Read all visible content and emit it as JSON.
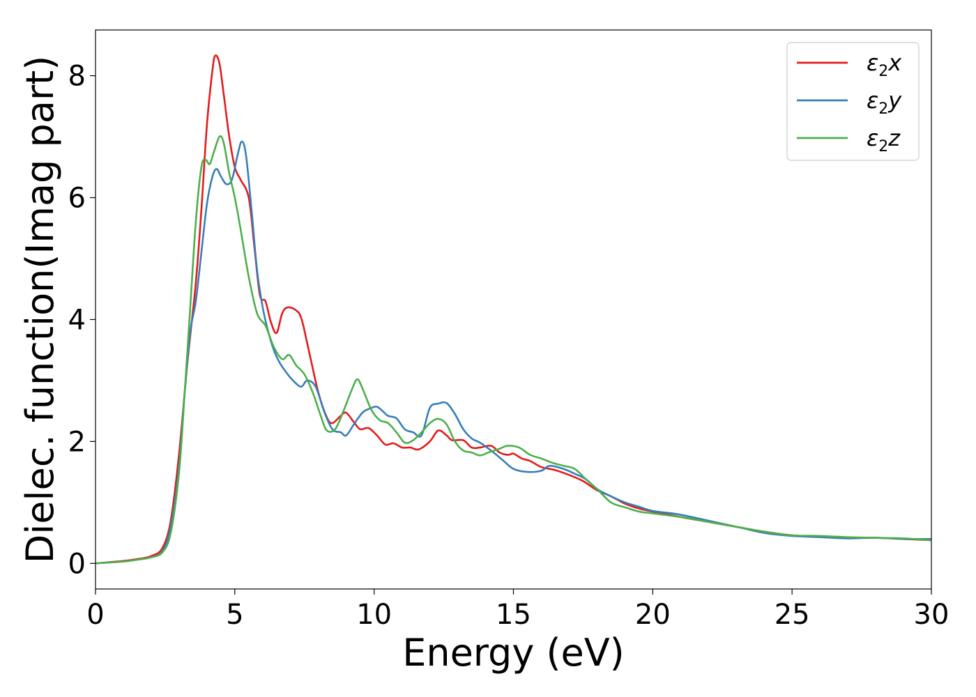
{
  "chart_data": {
    "type": "line",
    "xlabel": "Energy (eV)",
    "ylabel": "Dielec. function(Imag part)",
    "xlim": [
      0,
      30
    ],
    "ylim": [
      -0.42,
      8.75
    ],
    "xticks": [
      0,
      5,
      10,
      15,
      20,
      25,
      30
    ],
    "yticks": [
      0,
      2,
      4,
      6,
      8
    ],
    "grid": false,
    "legend_position": "top-right",
    "series": [
      {
        "name": "ε2x",
        "legend": {
          "base": "ε",
          "sub": "2",
          "suffix": "x"
        },
        "color": "#e41a1c",
        "points": [
          [
            0,
            0
          ],
          [
            1,
            0.04
          ],
          [
            1.5,
            0.07
          ],
          [
            2,
            0.12
          ],
          [
            2.4,
            0.25
          ],
          [
            2.7,
            0.7
          ],
          [
            3.0,
            1.8
          ],
          [
            3.3,
            3.3
          ],
          [
            3.6,
            4.6
          ],
          [
            3.8,
            5.8
          ],
          [
            4.0,
            7.2
          ],
          [
            4.2,
            8.1
          ],
          [
            4.3,
            8.33
          ],
          [
            4.45,
            8.2
          ],
          [
            4.6,
            7.7
          ],
          [
            4.8,
            7.0
          ],
          [
            5.0,
            6.5
          ],
          [
            5.2,
            6.3
          ],
          [
            5.5,
            6.0
          ],
          [
            5.7,
            5.2
          ],
          [
            5.9,
            4.4
          ],
          [
            6.1,
            4.3
          ],
          [
            6.3,
            3.95
          ],
          [
            6.5,
            3.78
          ],
          [
            6.7,
            4.1
          ],
          [
            6.9,
            4.2
          ],
          [
            7.2,
            4.15
          ],
          [
            7.4,
            4.0
          ],
          [
            7.7,
            3.4
          ],
          [
            8.0,
            2.8
          ],
          [
            8.3,
            2.4
          ],
          [
            8.5,
            2.3
          ],
          [
            8.8,
            2.42
          ],
          [
            9.0,
            2.47
          ],
          [
            9.3,
            2.3
          ],
          [
            9.5,
            2.2
          ],
          [
            9.8,
            2.22
          ],
          [
            10.1,
            2.1
          ],
          [
            10.4,
            1.95
          ],
          [
            10.7,
            1.97
          ],
          [
            11.0,
            1.9
          ],
          [
            11.3,
            1.9
          ],
          [
            11.6,
            1.87
          ],
          [
            12.0,
            2.0
          ],
          [
            12.3,
            2.18
          ],
          [
            12.6,
            2.1
          ],
          [
            12.8,
            2.02
          ],
          [
            13.2,
            2.02
          ],
          [
            13.5,
            1.9
          ],
          [
            13.8,
            1.9
          ],
          [
            14.2,
            1.93
          ],
          [
            14.5,
            1.82
          ],
          [
            14.8,
            1.78
          ],
          [
            15.0,
            1.8
          ],
          [
            15.3,
            1.72
          ],
          [
            15.6,
            1.68
          ],
          [
            16.0,
            1.58
          ],
          [
            16.5,
            1.53
          ],
          [
            17.0,
            1.45
          ],
          [
            17.5,
            1.35
          ],
          [
            18.0,
            1.2
          ],
          [
            18.5,
            1.1
          ],
          [
            19.0,
            0.98
          ],
          [
            19.5,
            0.9
          ],
          [
            20.0,
            0.85
          ],
          [
            21.0,
            0.76
          ],
          [
            22.0,
            0.68
          ],
          [
            23.0,
            0.6
          ],
          [
            24.0,
            0.52
          ],
          [
            25.0,
            0.46
          ],
          [
            26.0,
            0.44
          ],
          [
            27.0,
            0.42
          ],
          [
            28.0,
            0.42
          ],
          [
            29.0,
            0.4
          ],
          [
            30.0,
            0.38
          ]
        ]
      },
      {
        "name": "ε2y",
        "legend": {
          "base": "ε",
          "sub": "2",
          "suffix": "y"
        },
        "color": "#377eb8",
        "points": [
          [
            0,
            0
          ],
          [
            1,
            0.03
          ],
          [
            1.5,
            0.06
          ],
          [
            2,
            0.1
          ],
          [
            2.4,
            0.2
          ],
          [
            2.7,
            0.6
          ],
          [
            3.0,
            1.6
          ],
          [
            3.2,
            2.8
          ],
          [
            3.4,
            3.8
          ],
          [
            3.6,
            4.3
          ],
          [
            3.8,
            5.1
          ],
          [
            4.0,
            5.9
          ],
          [
            4.2,
            6.35
          ],
          [
            4.35,
            6.47
          ],
          [
            4.5,
            6.35
          ],
          [
            4.7,
            6.22
          ],
          [
            4.9,
            6.3
          ],
          [
            5.1,
            6.7
          ],
          [
            5.25,
            6.92
          ],
          [
            5.4,
            6.7
          ],
          [
            5.6,
            5.8
          ],
          [
            5.8,
            4.8
          ],
          [
            6.0,
            4.2
          ],
          [
            6.2,
            3.8
          ],
          [
            6.4,
            3.5
          ],
          [
            6.6,
            3.3
          ],
          [
            6.9,
            3.1
          ],
          [
            7.2,
            2.95
          ],
          [
            7.4,
            2.9
          ],
          [
            7.6,
            3.0
          ],
          [
            7.9,
            2.9
          ],
          [
            8.2,
            2.5
          ],
          [
            8.5,
            2.2
          ],
          [
            8.8,
            2.15
          ],
          [
            9.0,
            2.1
          ],
          [
            9.3,
            2.3
          ],
          [
            9.6,
            2.48
          ],
          [
            9.9,
            2.55
          ],
          [
            10.1,
            2.57
          ],
          [
            10.3,
            2.5
          ],
          [
            10.5,
            2.42
          ],
          [
            10.8,
            2.38
          ],
          [
            11.1,
            2.2
          ],
          [
            11.4,
            2.15
          ],
          [
            11.7,
            2.1
          ],
          [
            12.0,
            2.55
          ],
          [
            12.3,
            2.62
          ],
          [
            12.6,
            2.63
          ],
          [
            12.9,
            2.45
          ],
          [
            13.2,
            2.2
          ],
          [
            13.5,
            2.05
          ],
          [
            13.8,
            1.98
          ],
          [
            14.2,
            1.85
          ],
          [
            14.6,
            1.7
          ],
          [
            15.0,
            1.55
          ],
          [
            15.5,
            1.5
          ],
          [
            16.0,
            1.52
          ],
          [
            16.3,
            1.6
          ],
          [
            16.8,
            1.55
          ],
          [
            17.2,
            1.47
          ],
          [
            17.6,
            1.38
          ],
          [
            18.0,
            1.22
          ],
          [
            18.5,
            1.1
          ],
          [
            19.0,
            1.0
          ],
          [
            19.5,
            0.93
          ],
          [
            20.0,
            0.86
          ],
          [
            20.7,
            0.82
          ],
          [
            21.2,
            0.78
          ],
          [
            21.8,
            0.72
          ],
          [
            22.5,
            0.65
          ],
          [
            23.2,
            0.58
          ],
          [
            24.0,
            0.5
          ],
          [
            25.0,
            0.45
          ],
          [
            26.0,
            0.43
          ],
          [
            27.0,
            0.41
          ],
          [
            28.0,
            0.42
          ],
          [
            29.0,
            0.4
          ],
          [
            30.0,
            0.4
          ]
        ]
      },
      {
        "name": "ε2z",
        "legend": {
          "base": "ε",
          "sub": "2",
          "suffix": "z"
        },
        "color": "#4daf4a",
        "points": [
          [
            0,
            0
          ],
          [
            1,
            0.03
          ],
          [
            1.5,
            0.06
          ],
          [
            2,
            0.1
          ],
          [
            2.4,
            0.18
          ],
          [
            2.7,
            0.5
          ],
          [
            3.0,
            1.5
          ],
          [
            3.2,
            2.8
          ],
          [
            3.4,
            4.2
          ],
          [
            3.6,
            5.6
          ],
          [
            3.8,
            6.5
          ],
          [
            3.95,
            6.62
          ],
          [
            4.1,
            6.55
          ],
          [
            4.25,
            6.75
          ],
          [
            4.45,
            7.0
          ],
          [
            4.6,
            6.9
          ],
          [
            4.8,
            6.4
          ],
          [
            5.0,
            6.0
          ],
          [
            5.2,
            5.5
          ],
          [
            5.5,
            4.7
          ],
          [
            5.8,
            4.1
          ],
          [
            6.1,
            3.9
          ],
          [
            6.4,
            3.55
          ],
          [
            6.7,
            3.35
          ],
          [
            6.95,
            3.42
          ],
          [
            7.2,
            3.25
          ],
          [
            7.5,
            3.1
          ],
          [
            7.8,
            2.8
          ],
          [
            8.1,
            2.4
          ],
          [
            8.3,
            2.18
          ],
          [
            8.6,
            2.2
          ],
          [
            8.9,
            2.5
          ],
          [
            9.2,
            2.85
          ],
          [
            9.4,
            3.02
          ],
          [
            9.6,
            2.85
          ],
          [
            9.9,
            2.52
          ],
          [
            10.2,
            2.35
          ],
          [
            10.5,
            2.3
          ],
          [
            10.8,
            2.15
          ],
          [
            11.1,
            1.98
          ],
          [
            11.4,
            2.02
          ],
          [
            11.7,
            2.15
          ],
          [
            12.0,
            2.3
          ],
          [
            12.3,
            2.37
          ],
          [
            12.6,
            2.28
          ],
          [
            12.9,
            2.0
          ],
          [
            13.2,
            1.85
          ],
          [
            13.5,
            1.82
          ],
          [
            13.8,
            1.77
          ],
          [
            14.1,
            1.82
          ],
          [
            14.5,
            1.88
          ],
          [
            14.8,
            1.93
          ],
          [
            15.2,
            1.9
          ],
          [
            15.6,
            1.78
          ],
          [
            16.0,
            1.72
          ],
          [
            16.4,
            1.65
          ],
          [
            16.8,
            1.6
          ],
          [
            17.2,
            1.55
          ],
          [
            17.6,
            1.38
          ],
          [
            18.0,
            1.22
          ],
          [
            18.5,
            1.0
          ],
          [
            19.0,
            0.92
          ],
          [
            19.5,
            0.85
          ],
          [
            20.0,
            0.82
          ],
          [
            21.0,
            0.76
          ],
          [
            22.0,
            0.68
          ],
          [
            23.0,
            0.6
          ],
          [
            24.0,
            0.52
          ],
          [
            25.0,
            0.46
          ],
          [
            26.0,
            0.45
          ],
          [
            27.0,
            0.43
          ],
          [
            28.0,
            0.42
          ],
          [
            29.0,
            0.41
          ],
          [
            30.0,
            0.38
          ]
        ]
      }
    ]
  }
}
